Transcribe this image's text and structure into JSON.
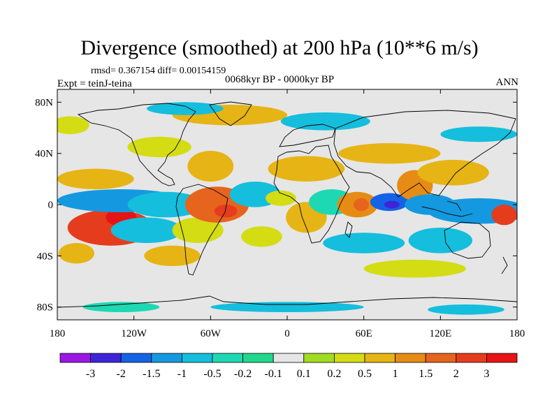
{
  "title": "Divergence (smoothed) at 200 hPa (10**6 m/s)",
  "stats": "rmsd= 0.367154 diff= 0.00154159",
  "period": "0068kyr BP - 0000kyr BP",
  "experiment": "Expt = teinJ-teina",
  "season": "ANN",
  "chart_data": {
    "type": "heatmap",
    "projection": "cylindrical-equidistant",
    "x_range": [
      -180,
      180
    ],
    "y_range": [
      -90,
      90
    ],
    "x_ticks": [
      {
        "value": -180,
        "label": "180"
      },
      {
        "value": -120,
        "label": "120W"
      },
      {
        "value": -60,
        "label": "60W"
      },
      {
        "value": 0,
        "label": "0"
      },
      {
        "value": 60,
        "label": "60E"
      },
      {
        "value": 120,
        "label": "120E"
      },
      {
        "value": 180,
        "label": "180"
      }
    ],
    "y_ticks": [
      {
        "value": 80,
        "label": "80N"
      },
      {
        "value": 40,
        "label": "40N"
      },
      {
        "value": 0,
        "label": "0"
      },
      {
        "value": -40,
        "label": "40S"
      },
      {
        "value": -80,
        "label": "80S"
      }
    ],
    "colorbar": {
      "labels": [
        "-3",
        "-2",
        "-1.5",
        "-1",
        "-0.5",
        "-0.2",
        "-0.1",
        "0.1",
        "0.2",
        "0.5",
        "1",
        "1.5",
        "2",
        "3"
      ],
      "colors": [
        "#9a17e6",
        "#3e24d9",
        "#1463e6",
        "#1499e0",
        "#14bedc",
        "#1ed8b4",
        "#20d88c",
        "#e6e6e6",
        "#a0dc20",
        "#d4dc14",
        "#e6b414",
        "#e68c14",
        "#e6641e",
        "#e63c1e",
        "#e61414"
      ]
    },
    "features": [
      {
        "lon": -138,
        "lat": -18,
        "rx": 34,
        "ry": 14,
        "value": 2
      },
      {
        "lon": -130,
        "lat": -10,
        "rx": 12,
        "ry": 7,
        "value": 3
      },
      {
        "lon": -130,
        "lat": 3,
        "rx": 50,
        "ry": 9,
        "value": -1
      },
      {
        "lon": -110,
        "lat": -20,
        "rx": 28,
        "ry": 10,
        "value": -0.5
      },
      {
        "lon": -95,
        "lat": 0,
        "rx": 30,
        "ry": 10,
        "value": -0.5
      },
      {
        "lon": -150,
        "lat": 20,
        "rx": 30,
        "ry": 8,
        "value": 0.5
      },
      {
        "lon": -165,
        "lat": -38,
        "rx": 14,
        "ry": 8,
        "value": 0.5
      },
      {
        "lon": -90,
        "lat": -40,
        "rx": 22,
        "ry": 8,
        "value": 0.5
      },
      {
        "lon": -70,
        "lat": -20,
        "rx": 20,
        "ry": 10,
        "value": 0.2
      },
      {
        "lon": -55,
        "lat": 0,
        "rx": 25,
        "ry": 14,
        "value": 1.5
      },
      {
        "lon": -48,
        "lat": -5,
        "rx": 9,
        "ry": 5,
        "value": 2
      },
      {
        "lon": -60,
        "lat": 30,
        "rx": 18,
        "ry": 12,
        "value": 0.5
      },
      {
        "lon": -25,
        "lat": 8,
        "rx": 20,
        "ry": 10,
        "value": -0.5
      },
      {
        "lon": -5,
        "lat": 5,
        "rx": 12,
        "ry": 6,
        "value": 0.2
      },
      {
        "lon": 15,
        "lat": -10,
        "rx": 16,
        "ry": 12,
        "value": 0.5
      },
      {
        "lon": 15,
        "lat": 28,
        "rx": 30,
        "ry": 10,
        "value": 0.5
      },
      {
        "lon": -20,
        "lat": -25,
        "rx": 16,
        "ry": 8,
        "value": 0.2
      },
      {
        "lon": 35,
        "lat": 2,
        "rx": 18,
        "ry": 10,
        "value": -0.2
      },
      {
        "lon": 55,
        "lat": 0,
        "rx": 16,
        "ry": 10,
        "value": 1
      },
      {
        "lon": 58,
        "lat": 0,
        "rx": 6,
        "ry": 5,
        "value": 1.5
      },
      {
        "lon": 80,
        "lat": 2,
        "rx": 15,
        "ry": 7,
        "value": -1.5
      },
      {
        "lon": 82,
        "lat": 0,
        "rx": 6,
        "ry": 3,
        "value": -2
      },
      {
        "lon": 100,
        "lat": 15,
        "rx": 14,
        "ry": 12,
        "value": 1
      },
      {
        "lon": 130,
        "lat": 25,
        "rx": 28,
        "ry": 10,
        "value": 0.5
      },
      {
        "lon": 112,
        "lat": 0,
        "rx": 20,
        "ry": 8,
        "value": -1
      },
      {
        "lon": 150,
        "lat": -5,
        "rx": 40,
        "ry": 10,
        "value": -1
      },
      {
        "lon": 170,
        "lat": -8,
        "rx": 10,
        "ry": 8,
        "value": 2
      },
      {
        "lon": 120,
        "lat": -28,
        "rx": 25,
        "ry": 10,
        "value": -0.5
      },
      {
        "lon": 60,
        "lat": -30,
        "rx": 32,
        "ry": 8,
        "value": -0.5
      },
      {
        "lon": 100,
        "lat": -50,
        "rx": 40,
        "ry": 7,
        "value": 0.2
      },
      {
        "lon": -45,
        "lat": 70,
        "rx": 45,
        "ry": 8,
        "value": 0.5
      },
      {
        "lon": -80,
        "lat": 75,
        "rx": 30,
        "ry": 5,
        "value": -0.5
      },
      {
        "lon": 30,
        "lat": 65,
        "rx": 35,
        "ry": 7,
        "value": -0.5
      },
      {
        "lon": 80,
        "lat": 40,
        "rx": 40,
        "ry": 8,
        "value": 0.5
      },
      {
        "lon": 150,
        "lat": 55,
        "rx": 30,
        "ry": 6,
        "value": -0.5
      },
      {
        "lon": -170,
        "lat": 62,
        "rx": 15,
        "ry": 7,
        "value": 0.2
      },
      {
        "lon": -100,
        "lat": 45,
        "rx": 25,
        "ry": 8,
        "value": 0.2
      },
      {
        "lon": 0,
        "lat": -80,
        "rx": 60,
        "ry": 4,
        "value": -0.5
      },
      {
        "lon": -130,
        "lat": -80,
        "rx": 30,
        "ry": 4,
        "value": -0.2
      },
      {
        "lon": 140,
        "lat": -82,
        "rx": 30,
        "ry": 4,
        "value": -0.5
      }
    ]
  }
}
